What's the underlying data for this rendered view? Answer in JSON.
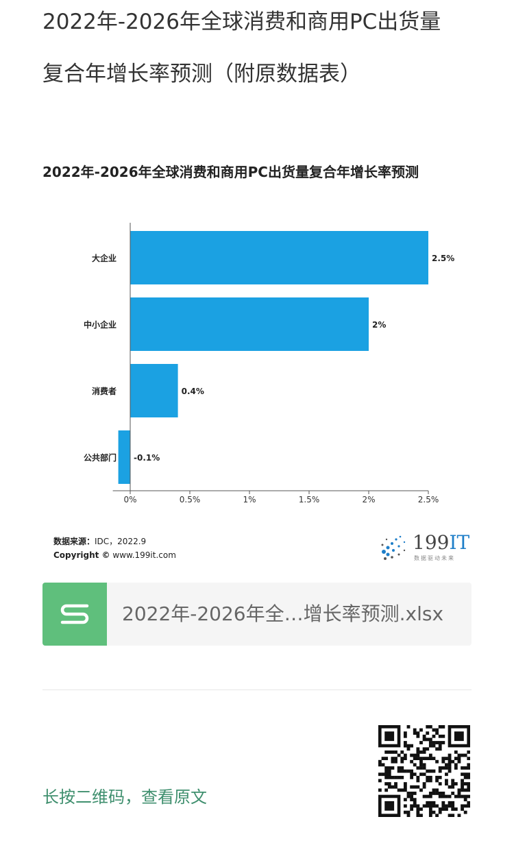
{
  "page": {
    "title_line1": "2022年-2026年全球消费和商用PC出货量",
    "title_line2": "复合年增长率预测（附原数据表）"
  },
  "chart_data": {
    "type": "bar",
    "orientation": "horizontal",
    "title": "2022年-2026年全球消费和商用PC出货量复合年增长率预测",
    "categories": [
      "大企业",
      "中小企业",
      "消费者",
      "公共部门"
    ],
    "values": [
      2.5,
      2,
      0.4,
      -0.1
    ],
    "value_labels": [
      "2.5%",
      "2%",
      "0.4%",
      "-0.1%"
    ],
    "xticks": [
      "0%",
      "0.5%",
      "1%",
      "1.5%",
      "2%",
      "2.5%"
    ],
    "xtick_values": [
      0,
      0.5,
      1,
      1.5,
      2,
      2.5
    ],
    "xlim": [
      -0.1,
      2.5
    ],
    "bar_color": "#1ba1e2",
    "grid": false
  },
  "source": {
    "label": "数据来源：",
    "value": "IDC，2022.9",
    "copyright_label": "Copyright ©",
    "copyright_value": "www.199it.com"
  },
  "logo": {
    "num": "199",
    "it": "IT",
    "tagline": "数据驱动未来"
  },
  "file": {
    "icon": "spreadsheet-s-icon",
    "name": "2022年-2026年全…增长率预测.xlsx",
    "icon_color": "#5fbf7c"
  },
  "footer": {
    "qr_hint": "长按二维码，查看原文"
  }
}
